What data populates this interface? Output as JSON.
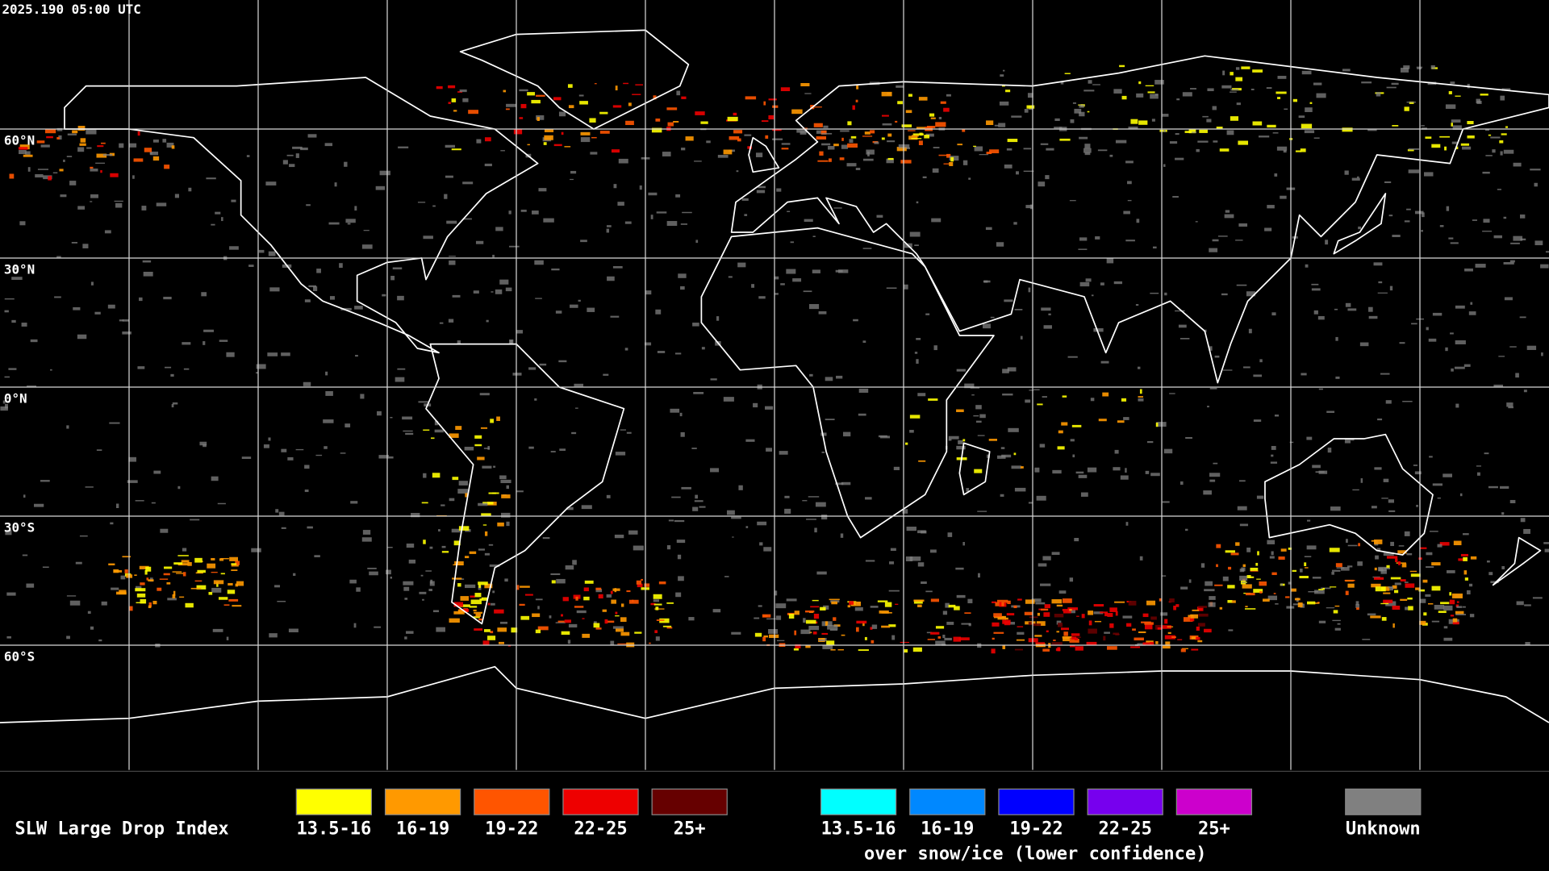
{
  "timestamp": "2025.190 05:00 UTC",
  "latitude_labels": [
    "60°N",
    "30°N",
    "0°N",
    "30°S",
    "60°S"
  ],
  "legend": {
    "title": "SLW Large Drop Index",
    "liquid": [
      {
        "label": "13.5-16",
        "color": "#ffff00"
      },
      {
        "label": "16-19",
        "color": "#ff9900"
      },
      {
        "label": "19-22",
        "color": "#ff5500"
      },
      {
        "label": "22-25",
        "color": "#ee0000"
      },
      {
        "label": "25+",
        "color": "#660000"
      }
    ],
    "snow_ice": [
      {
        "label": "13.5-16",
        "color": "#00ffff"
      },
      {
        "label": "16-19",
        "color": "#0088ff"
      },
      {
        "label": "19-22",
        "color": "#0000ff"
      },
      {
        "label": "22-25",
        "color": "#7700ee"
      },
      {
        "label": "25+",
        "color": "#cc00cc"
      }
    ],
    "snow_ice_note": "over snow/ice (lower confidence)",
    "unknown": {
      "label": "Unknown",
      "color": "#808080"
    }
  }
}
